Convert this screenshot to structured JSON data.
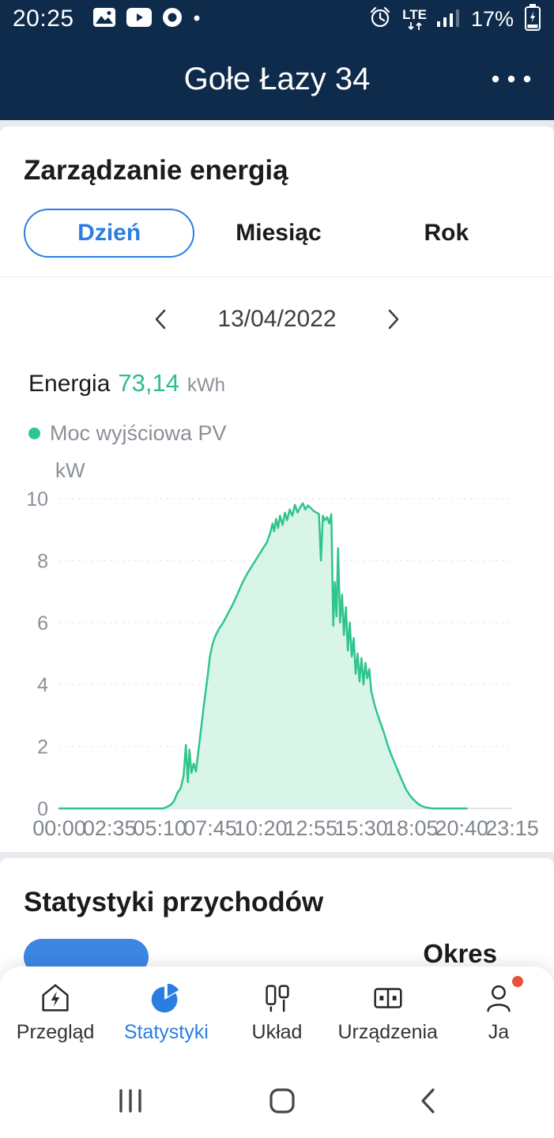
{
  "colors": {
    "navy": "#0f2b4b",
    "accent_blue": "#2a7de1",
    "green": "#2fc58c",
    "green_fill": "#d9f4e9",
    "text_dark": "#1b1b1b",
    "text_gray": "#8a9099",
    "badge_red": "#e8503a"
  },
  "status_bar": {
    "time": "20:25",
    "network": "LTE",
    "battery": "17%"
  },
  "header": {
    "title": "Gołe Łazy 34"
  },
  "energy_section": {
    "title": "Zarządzanie energią",
    "tabs": [
      {
        "label": "Dzień",
        "active": true
      },
      {
        "label": "Miesiąc",
        "active": false
      },
      {
        "label": "Rok",
        "active": false
      }
    ],
    "date": "13/04/2022",
    "energy_label": "Energia",
    "energy_value": "73,14",
    "energy_unit": "kWh",
    "legend_label": "Moc wyjściowa PV"
  },
  "chart_data": {
    "type": "area",
    "title": "Moc wyjściowa PV",
    "xlabel": "",
    "ylabel": "kW",
    "ylim": [
      0,
      10
    ],
    "y_ticks": [
      0,
      2,
      4,
      6,
      8,
      10
    ],
    "x_tick_labels": [
      "00:00",
      "02:35",
      "05:10",
      "07:45",
      "10:20",
      "12:55",
      "15:30",
      "18:05",
      "20:40",
      "23:15"
    ],
    "x_range_minutes": [
      0,
      1395
    ],
    "grid": "dotted-horizontal",
    "legend_position": "top-left",
    "series": [
      {
        "name": "Moc wyjściowa PV",
        "color": "#2fc58c",
        "fill": "#d9f4e9",
        "points": [
          [
            0,
            0
          ],
          [
            320,
            0
          ],
          [
            332,
            0.05
          ],
          [
            344,
            0.12
          ],
          [
            354,
            0.25
          ],
          [
            364,
            0.5
          ],
          [
            374,
            0.65
          ],
          [
            383,
            1.05
          ],
          [
            390,
            2.05
          ],
          [
            396,
            0.85
          ],
          [
            401,
            1.9
          ],
          [
            407,
            1.15
          ],
          [
            414,
            1.45
          ],
          [
            421,
            1.2
          ],
          [
            428,
            1.8
          ],
          [
            436,
            2.5
          ],
          [
            445,
            3.3
          ],
          [
            455,
            4.1
          ],
          [
            464,
            4.9
          ],
          [
            472,
            5.3
          ],
          [
            480,
            5.55
          ],
          [
            492,
            5.8
          ],
          [
            505,
            6.0
          ],
          [
            520,
            6.3
          ],
          [
            535,
            6.6
          ],
          [
            550,
            6.95
          ],
          [
            565,
            7.3
          ],
          [
            580,
            7.6
          ],
          [
            595,
            7.85
          ],
          [
            610,
            8.1
          ],
          [
            625,
            8.35
          ],
          [
            640,
            8.6
          ],
          [
            650,
            8.9
          ],
          [
            657,
            9.2
          ],
          [
            662,
            8.95
          ],
          [
            668,
            9.35
          ],
          [
            674,
            9.05
          ],
          [
            680,
            9.45
          ],
          [
            688,
            9.15
          ],
          [
            695,
            9.55
          ],
          [
            702,
            9.3
          ],
          [
            710,
            9.65
          ],
          [
            718,
            9.45
          ],
          [
            726,
            9.8
          ],
          [
            734,
            9.55
          ],
          [
            742,
            9.72
          ],
          [
            750,
            9.85
          ],
          [
            758,
            9.65
          ],
          [
            766,
            9.78
          ],
          [
            775,
            9.7
          ],
          [
            784,
            9.6
          ],
          [
            792,
            9.55
          ],
          [
            800,
            9.5
          ],
          [
            806,
            8.0
          ],
          [
            812,
            9.45
          ],
          [
            818,
            9.3
          ],
          [
            825,
            9.4
          ],
          [
            832,
            9.2
          ],
          [
            838,
            9.5
          ],
          [
            844,
            5.9
          ],
          [
            849,
            7.3
          ],
          [
            854,
            6.2
          ],
          [
            859,
            8.4
          ],
          [
            865,
            6.0
          ],
          [
            871,
            6.9
          ],
          [
            877,
            5.6
          ],
          [
            883,
            6.5
          ],
          [
            889,
            5.1
          ],
          [
            895,
            6.0
          ],
          [
            901,
            4.9
          ],
          [
            907,
            5.5
          ],
          [
            913,
            4.35
          ],
          [
            919,
            5.0
          ],
          [
            925,
            4.1
          ],
          [
            931,
            4.85
          ],
          [
            937,
            4.0
          ],
          [
            943,
            4.7
          ],
          [
            949,
            4.2
          ],
          [
            955,
            4.5
          ],
          [
            961,
            3.8
          ],
          [
            970,
            3.4
          ],
          [
            980,
            3.05
          ],
          [
            990,
            2.75
          ],
          [
            1000,
            2.45
          ],
          [
            1010,
            2.1
          ],
          [
            1020,
            1.8
          ],
          [
            1032,
            1.5
          ],
          [
            1044,
            1.2
          ],
          [
            1056,
            0.9
          ],
          [
            1068,
            0.62
          ],
          [
            1080,
            0.42
          ],
          [
            1092,
            0.28
          ],
          [
            1104,
            0.16
          ],
          [
            1116,
            0.08
          ],
          [
            1130,
            0.03
          ],
          [
            1150,
            0
          ],
          [
            1255,
            0
          ]
        ]
      }
    ]
  },
  "income_section": {
    "title": "Statystyki przychodów",
    "period_label": "Okres"
  },
  "bottom_nav": {
    "items": [
      {
        "label": "Przegląd",
        "icon": "home-energy-icon",
        "active": false
      },
      {
        "label": "Statystyki",
        "icon": "pie-chart-icon",
        "active": true
      },
      {
        "label": "Układ",
        "icon": "layout-icon",
        "active": false
      },
      {
        "label": "Urządzenia",
        "icon": "devices-icon",
        "active": false
      },
      {
        "label": "Ja",
        "icon": "person-icon",
        "active": false,
        "badge": true
      }
    ]
  }
}
